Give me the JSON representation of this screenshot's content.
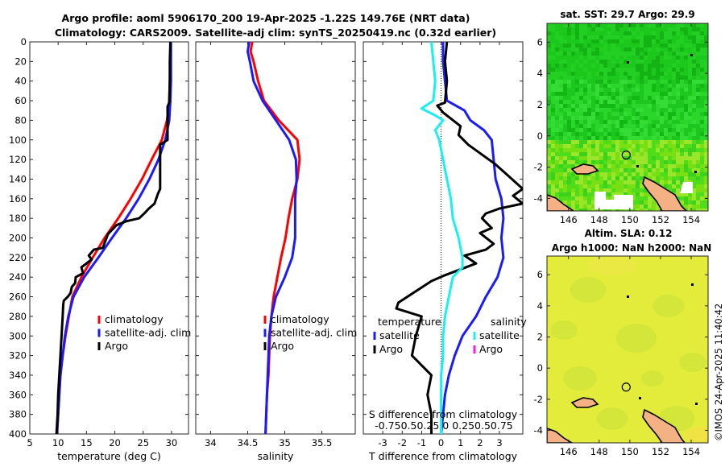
{
  "title_line1": "Argo profile: aoml 5906170_200 19-Apr-2025 -1.22S 149.76E (NRT data)",
  "title_line2": "Climatology: CARS2009. Satellite-adj clim: synTS_20250419.nc (0.32d earlier)",
  "watermark": "©IMOS 24-Apr-2025 11:40:42",
  "colors": {
    "climatology": "#ff0000",
    "satellite": "#1a1aff",
    "argo": "#000000",
    "sat_salinity": "#19f0f0",
    "argo_salinity": "#ff1ad9",
    "land": "#f4b183",
    "sst_green": "#22cc22",
    "sla_yellow": "#e4ed3c"
  },
  "chart_data": [
    {
      "type": "line",
      "id": "temperature",
      "xlabel": "temperature (deg C)",
      "xlim": [
        5,
        33
      ],
      "ylim": [
        400,
        0
      ],
      "xticks": [
        5,
        10,
        15,
        20,
        25,
        30
      ],
      "yticks": [
        0,
        20,
        40,
        60,
        80,
        100,
        120,
        140,
        160,
        180,
        200,
        220,
        240,
        260,
        280,
        300,
        320,
        340,
        360,
        380,
        400
      ],
      "legend": [
        "climatology",
        "satellite-adj. clim",
        "Argo"
      ],
      "series": [
        {
          "name": "climatology",
          "color": "#ff0000",
          "points": [
            [
              29.8,
              0
            ],
            [
              29.8,
              20
            ],
            [
              29.7,
              40
            ],
            [
              29.6,
              60
            ],
            [
              29.2,
              80
            ],
            [
              28.3,
              100
            ],
            [
              26.5,
              120
            ],
            [
              24.8,
              140
            ],
            [
              22.8,
              160
            ],
            [
              20.6,
              180
            ],
            [
              18.2,
              200
            ],
            [
              16.1,
              220
            ],
            [
              14.1,
              240
            ],
            [
              12.5,
              260
            ],
            [
              11.9,
              280
            ],
            [
              11.3,
              300
            ],
            [
              10.8,
              320
            ],
            [
              10.4,
              340
            ],
            [
              10.2,
              360
            ],
            [
              10.0,
              380
            ],
            [
              9.8,
              400
            ]
          ]
        },
        {
          "name": "satellite-adj. clim",
          "color": "#1a1aff",
          "points": [
            [
              29.9,
              0
            ],
            [
              29.9,
              20
            ],
            [
              29.9,
              40
            ],
            [
              29.8,
              60
            ],
            [
              29.6,
              80
            ],
            [
              28.9,
              100
            ],
            [
              27.7,
              120
            ],
            [
              26.1,
              140
            ],
            [
              24.2,
              160
            ],
            [
              22.0,
              180
            ],
            [
              19.5,
              200
            ],
            [
              17.1,
              220
            ],
            [
              14.6,
              240
            ],
            [
              12.7,
              260
            ],
            [
              11.8,
              280
            ],
            [
              11.2,
              300
            ],
            [
              10.8,
              320
            ],
            [
              10.4,
              340
            ],
            [
              10.2,
              360
            ],
            [
              10.0,
              380
            ],
            [
              9.8,
              400
            ]
          ]
        },
        {
          "name": "Argo",
          "color": "#000000",
          "points": [
            [
              29.8,
              0
            ],
            [
              29.7,
              20
            ],
            [
              29.7,
              40
            ],
            [
              29.6,
              62
            ],
            [
              29.3,
              66
            ],
            [
              29.3,
              100
            ],
            [
              28.0,
              105
            ],
            [
              28.0,
              150
            ],
            [
              27.6,
              155
            ],
            [
              27.0,
              165
            ],
            [
              26.0,
              170
            ],
            [
              25.2,
              175
            ],
            [
              24.3,
              180
            ],
            [
              22.0,
              183
            ],
            [
              20.3,
              187
            ],
            [
              18.8,
              196
            ],
            [
              18.2,
              205
            ],
            [
              17.9,
              210
            ],
            [
              16.3,
              212
            ],
            [
              15.4,
              218
            ],
            [
              15.9,
              222
            ],
            [
              14.1,
              230
            ],
            [
              14.4,
              236
            ],
            [
              13.1,
              240
            ],
            [
              13.0,
              246
            ],
            [
              12.4,
              250
            ],
            [
              12.2,
              256
            ],
            [
              11.7,
              260
            ],
            [
              11.0,
              264
            ],
            [
              10.9,
              268
            ],
            [
              10.8,
              280
            ],
            [
              10.6,
              300
            ],
            [
              10.4,
              320
            ],
            [
              10.2,
              340
            ],
            [
              10.0,
              360
            ],
            [
              9.9,
              380
            ],
            [
              9.7,
              400
            ]
          ]
        }
      ]
    },
    {
      "type": "line",
      "id": "salinity",
      "xlabel": "salinity",
      "xlim": [
        33.8,
        35.95
      ],
      "ylim": [
        400,
        0
      ],
      "xticks": [
        34,
        34.5,
        35,
        35.5
      ],
      "legend": [
        "climatology",
        "satellite-adj. clim",
        "Argo"
      ],
      "series": [
        {
          "name": "climatology",
          "color": "#ff0000",
          "points": [
            [
              34.56,
              0
            ],
            [
              34.54,
              10
            ],
            [
              34.58,
              20
            ],
            [
              34.64,
              40
            ],
            [
              34.72,
              60
            ],
            [
              34.92,
              80
            ],
            [
              35.17,
              100
            ],
            [
              35.2,
              120
            ],
            [
              35.17,
              140
            ],
            [
              35.1,
              160
            ],
            [
              35.05,
              180
            ],
            [
              35.01,
              200
            ],
            [
              34.95,
              220
            ],
            [
              34.9,
              240
            ],
            [
              34.85,
              260
            ],
            [
              34.82,
              280
            ],
            [
              34.8,
              300
            ],
            [
              34.79,
              320
            ],
            [
              34.78,
              340
            ],
            [
              34.76,
              360
            ],
            [
              34.75,
              380
            ],
            [
              34.74,
              400
            ]
          ]
        },
        {
          "name": "satellite-adj. clim",
          "color": "#1a1aff",
          "points": [
            [
              34.52,
              0
            ],
            [
              34.5,
              10
            ],
            [
              34.53,
              20
            ],
            [
              34.58,
              40
            ],
            [
              34.7,
              60
            ],
            [
              34.88,
              80
            ],
            [
              35.06,
              100
            ],
            [
              35.15,
              120
            ],
            [
              35.16,
              140
            ],
            [
              35.14,
              160
            ],
            [
              35.14,
              180
            ],
            [
              35.14,
              200
            ],
            [
              35.1,
              220
            ],
            [
              35.0,
              240
            ],
            [
              34.88,
              260
            ],
            [
              34.82,
              280
            ],
            [
              34.79,
              300
            ],
            [
              34.78,
              320
            ],
            [
              34.77,
              340
            ],
            [
              34.76,
              360
            ],
            [
              34.75,
              380
            ],
            [
              34.74,
              400
            ]
          ]
        }
      ]
    },
    {
      "type": "line",
      "id": "difference",
      "xlabel": "T difference from climatology",
      "xlabel_top": "S difference from climatology",
      "xlim": [
        -4,
        4.2
      ],
      "ylim": [
        400,
        0
      ],
      "xticks": [
        -3,
        -2,
        -1,
        0,
        1,
        2,
        3
      ],
      "top_tick_labels": "-0.750.50.25 0  0.250.50.75",
      "legend_left_title": "temperature",
      "legend_right_title": "salinity",
      "legend_left": [
        "satellite",
        "Argo"
      ],
      "legend_right": [
        "satellite",
        "Argo"
      ],
      "series": [
        {
          "name": "T satellite",
          "color": "#1a1aff",
          "points": [
            [
              0.1,
              0
            ],
            [
              0.1,
              20
            ],
            [
              0.2,
              40
            ],
            [
              0.3,
              60
            ],
            [
              1.2,
              70
            ],
            [
              1.5,
              80
            ],
            [
              2.2,
              90
            ],
            [
              2.6,
              100
            ],
            [
              2.7,
              120
            ],
            [
              2.8,
              140
            ],
            [
              3.1,
              160
            ],
            [
              3.2,
              180
            ],
            [
              3.1,
              200
            ],
            [
              3.2,
              220
            ],
            [
              2.9,
              240
            ],
            [
              2.3,
              260
            ],
            [
              1.8,
              280
            ],
            [
              1.1,
              300
            ],
            [
              0.7,
              320
            ],
            [
              0.4,
              340
            ],
            [
              0.2,
              360
            ],
            [
              0.1,
              380
            ],
            [
              0.0,
              400
            ]
          ]
        },
        {
          "name": "T Argo",
          "color": "#000000",
          "points": [
            [
              0.3,
              0
            ],
            [
              0.2,
              20
            ],
            [
              0.3,
              40
            ],
            [
              0.2,
              62
            ],
            [
              -0.2,
              65
            ],
            [
              0.1,
              72
            ],
            [
              1.0,
              86
            ],
            [
              0.9,
              95
            ],
            [
              1.4,
              105
            ],
            [
              2.8,
              125
            ],
            [
              4.2,
              150
            ],
            [
              3.7,
              157
            ],
            [
              4.2,
              165
            ],
            [
              3.0,
              170
            ],
            [
              2.3,
              175
            ],
            [
              2.1,
              180
            ],
            [
              2.6,
              190
            ],
            [
              2.0,
              195
            ],
            [
              2.7,
              206
            ],
            [
              2.3,
              212
            ],
            [
              1.2,
              218
            ],
            [
              1.8,
              226
            ],
            [
              0.2,
              238
            ],
            [
              -0.5,
              244
            ],
            [
              -2.2,
              266
            ],
            [
              -2.3,
              272
            ],
            [
              -1.0,
              280
            ],
            [
              -1.3,
              300
            ],
            [
              -1.5,
              320
            ],
            [
              -0.5,
              340
            ],
            [
              -0.7,
              360
            ],
            [
              -0.5,
              380
            ],
            [
              -0.5,
              400
            ]
          ]
        },
        {
          "name": "S satellite",
          "color": "#19f0f0",
          "points": [
            [
              -0.5,
              0
            ],
            [
              -0.4,
              20
            ],
            [
              -0.3,
              40
            ],
            [
              -0.4,
              60
            ],
            [
              -1.0,
              68
            ],
            [
              -0.3,
              75
            ],
            [
              0.1,
              80
            ],
            [
              -0.3,
              90
            ],
            [
              -0.1,
              100
            ],
            [
              0.1,
              120
            ],
            [
              0.3,
              140
            ],
            [
              0.5,
              160
            ],
            [
              0.6,
              180
            ],
            [
              0.9,
              200
            ],
            [
              1.1,
              220
            ],
            [
              1.1,
              230
            ],
            [
              0.6,
              240
            ],
            [
              0.4,
              260
            ],
            [
              0.2,
              280
            ],
            [
              0.1,
              300
            ],
            [
              0.1,
              320
            ],
            [
              0.0,
              340
            ],
            [
              0.0,
              360
            ],
            [
              0.0,
              380
            ],
            [
              0.0,
              400
            ]
          ]
        }
      ]
    },
    {
      "type": "heatmap",
      "id": "sst_map",
      "title": "sat. SST: 29.7 Argo: 29.9",
      "xlim": [
        144.6,
        155.1
      ],
      "ylim": [
        -4.8,
        7.2
      ],
      "xticks": [
        146,
        148,
        150,
        152,
        154
      ],
      "yticks": [
        6,
        4,
        2,
        0,
        -2,
        -4
      ],
      "marker": [
        149.76,
        -1.22
      ]
    },
    {
      "type": "heatmap",
      "id": "sla_map",
      "title1": "Altim. SLA: 0.12",
      "title2": "Argo h1000: NaN h2000: NaN",
      "xlim": [
        144.6,
        155.1
      ],
      "ylim": [
        -4.8,
        7.2
      ],
      "xticks": [
        146,
        148,
        150,
        152,
        154
      ],
      "yticks": [
        6,
        4,
        2,
        0,
        -2,
        -4
      ],
      "marker": [
        149.76,
        -1.22
      ]
    }
  ]
}
